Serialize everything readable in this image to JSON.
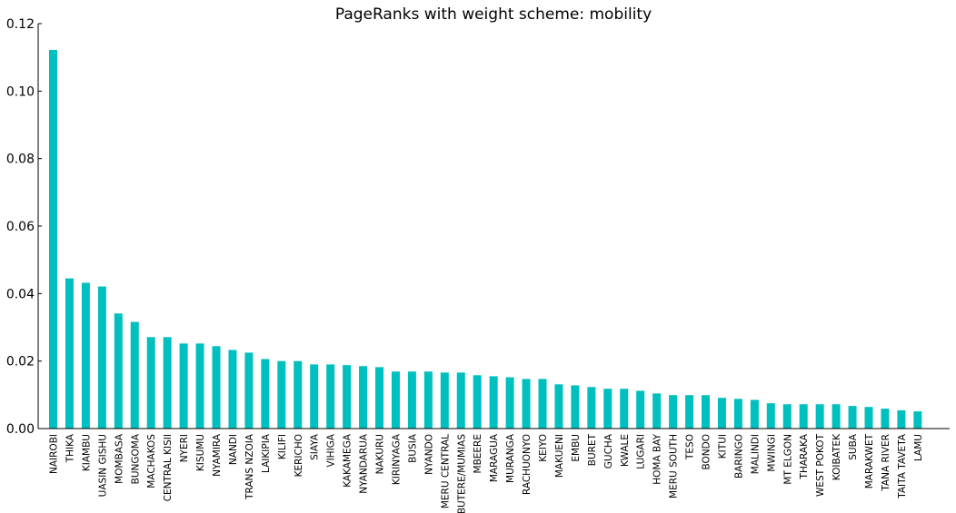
{
  "chart_data": {
    "type": "bar",
    "title": "PageRanks with weight scheme: mobility",
    "xlabel": "",
    "ylabel": "",
    "ylim": [
      0,
      0.12
    ],
    "yticks": [
      "0.00",
      "0.02",
      "0.04",
      "0.06",
      "0.08",
      "0.10",
      "0.12"
    ],
    "bar_color": "#00bfbf",
    "grid": false,
    "categories": [
      "NAIROBI",
      "THIKA",
      "KIAMBU",
      "UASIN GISHU",
      "MOMBASA",
      "BUNGOMA",
      "MACHAKOS",
      "CENTRAL KISII",
      "NYERI",
      "KISUMU",
      "NYAMIRA",
      "NANDI",
      "TRANS NZOIA",
      "LAIKIPIA",
      "KILIFI",
      "KERICHO",
      "SIAYA",
      "VIHIGA",
      "KAKAMEGA",
      "NYANDARUA",
      "NAKURU",
      "KIRINYAGA",
      "BUSIA",
      "NYANDO",
      "MERU CENTRAL",
      "BUTERE/MUMIAS",
      "MBEERE",
      "MARAGUA",
      "MURANGA",
      "RACHUONYO",
      "KEIYO",
      "MAKUENI",
      "EMBU",
      "BURET",
      "GUCHA",
      "KWALE",
      "LUGARI",
      "HOMA BAY",
      "MERU SOUTH",
      "TESO",
      "BONDO",
      "KITUI",
      "BARINGO",
      "MALINDI",
      "MWINGI",
      "MT ELGON",
      "THARAKA",
      "WEST POKOT",
      "KOIBATEK",
      "SUBA",
      "MARAKWET",
      "TANA RIVER",
      "TAITA TAVETA",
      "LAMU"
    ],
    "values": [
      0.1122,
      0.0445,
      0.0432,
      0.0421,
      0.0341,
      0.0316,
      0.0271,
      0.0271,
      0.0252,
      0.0252,
      0.0244,
      0.0233,
      0.0225,
      0.0206,
      0.02,
      0.02,
      0.019,
      0.019,
      0.0188,
      0.0185,
      0.0182,
      0.0169,
      0.0169,
      0.0169,
      0.0166,
      0.0166,
      0.0158,
      0.0155,
      0.0152,
      0.0147,
      0.0147,
      0.0131,
      0.0128,
      0.0123,
      0.0118,
      0.0118,
      0.0112,
      0.0104,
      0.0099,
      0.0099,
      0.0099,
      0.0091,
      0.0088,
      0.0085,
      0.0075,
      0.0072,
      0.0072,
      0.0072,
      0.0072,
      0.0067,
      0.0064,
      0.0059,
      0.0054,
      0.0051
    ]
  }
}
